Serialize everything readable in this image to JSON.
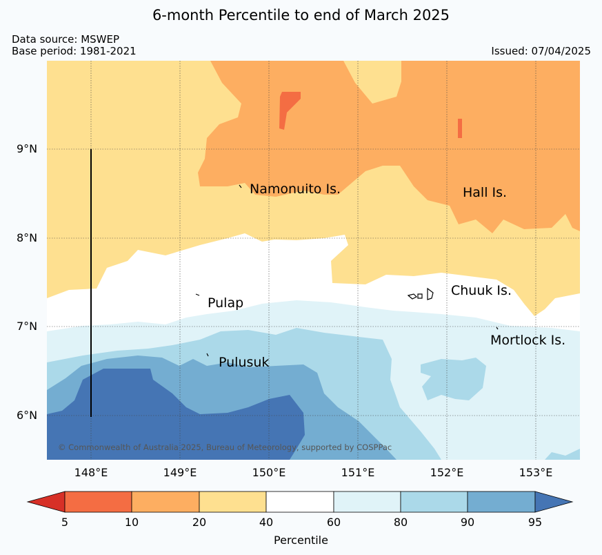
{
  "title": "6-month Percentile to end of March 2025",
  "meta": {
    "data_source": "Data source: MSWEP",
    "base_period": "Base period: 1981-2021",
    "issued": "Issued: 07/04/2025"
  },
  "axes": {
    "lat_labels": [
      "9°N",
      "8°N",
      "7°N",
      "6°N"
    ],
    "lon_labels": [
      "148°E",
      "149°E",
      "150°E",
      "151°E",
      "152°E",
      "153°E"
    ]
  },
  "places": {
    "namonuito": "Namonuito Is.",
    "hall": "Hall Is.",
    "pulap": "Pulap",
    "chuuk": "Chuuk Is.",
    "mortlock": "Mortlock Is.",
    "pulusuk": "Pulusuk"
  },
  "copyright": "© Commonwealth of Australia 2025, Bureau of Meteorology, supported by COSPPac",
  "colorbar": {
    "ticks": [
      "5",
      "10",
      "20",
      "40",
      "60",
      "80",
      "90",
      "95"
    ],
    "label": "Percentile",
    "colors": [
      "#d73027",
      "#f46d43",
      "#fdae61",
      "#fee090",
      "#ffffff",
      "#e0f3f8",
      "#abd9e9",
      "#74add1",
      "#4575b4"
    ]
  }
}
